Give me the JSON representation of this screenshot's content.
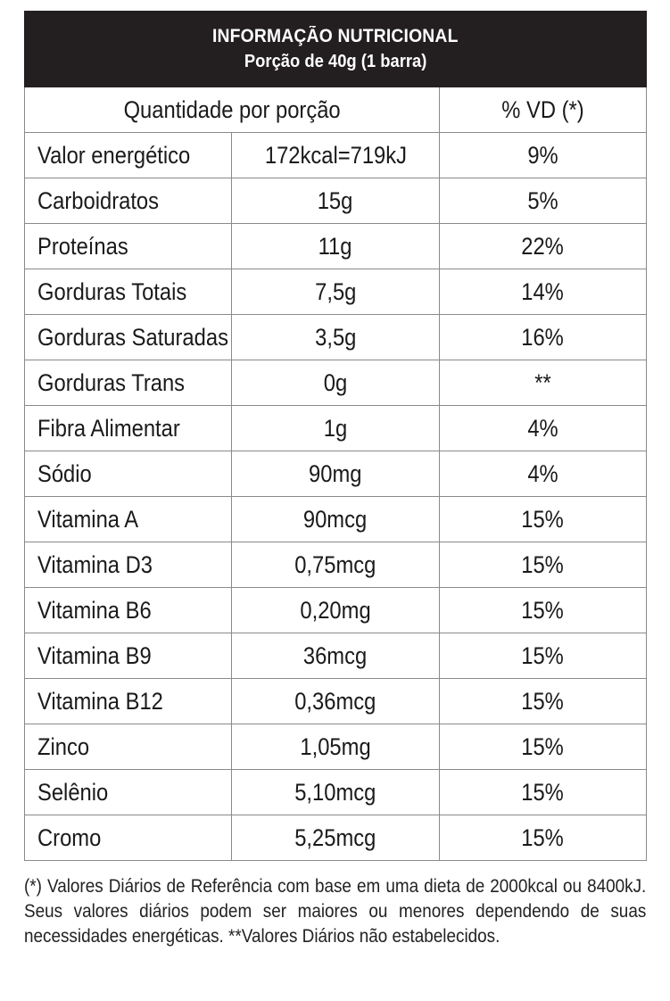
{
  "header": {
    "title": "INFORMAÇÃO NUTRICIONAL",
    "subtitle": "Porção de 40g (1 barra)"
  },
  "table": {
    "col_quantity_header": "Quantidade por porção",
    "col_vd_header": "% VD (*)",
    "rows": [
      {
        "name": "Valor energético",
        "amount": "172kcal=719kJ",
        "vd": "9%"
      },
      {
        "name": "Carboidratos",
        "amount": "15g",
        "vd": "5%"
      },
      {
        "name": "Proteínas",
        "amount": "11g",
        "vd": "22%"
      },
      {
        "name": "Gorduras Totais",
        "amount": "7,5g",
        "vd": "14%"
      },
      {
        "name": "Gorduras Saturadas",
        "amount": "3,5g",
        "vd": "16%"
      },
      {
        "name": "Gorduras Trans",
        "amount": "0g",
        "vd": "**"
      },
      {
        "name": "Fibra Alimentar",
        "amount": "1g",
        "vd": "4%"
      },
      {
        "name": "Sódio",
        "amount": "90mg",
        "vd": "4%"
      },
      {
        "name": "Vitamina A",
        "amount": "90mcg",
        "vd": "15%"
      },
      {
        "name": "Vitamina D3",
        "amount": "0,75mcg",
        "vd": "15%"
      },
      {
        "name": "Vitamina B6",
        "amount": "0,20mg",
        "vd": "15%"
      },
      {
        "name": "Vitamina B9",
        "amount": "36mcg",
        "vd": "15%"
      },
      {
        "name": "Vitamina B12",
        "amount": "0,36mcg",
        "vd": "15%"
      },
      {
        "name": "Zinco",
        "amount": "1,05mg",
        "vd": "15%"
      },
      {
        "name": "Selênio",
        "amount": "5,10mcg",
        "vd": "15%"
      },
      {
        "name": "Cromo",
        "amount": "5,25mcg",
        "vd": "15%"
      }
    ]
  },
  "footnote": "(*) Valores Diários de Referência com base em uma dieta de 2000kcal ou 8400kJ. Seus valores diários podem ser maiores ou menores dependendo de suas necessidades energéticas. **Valores Diários não estabelecidos."
}
